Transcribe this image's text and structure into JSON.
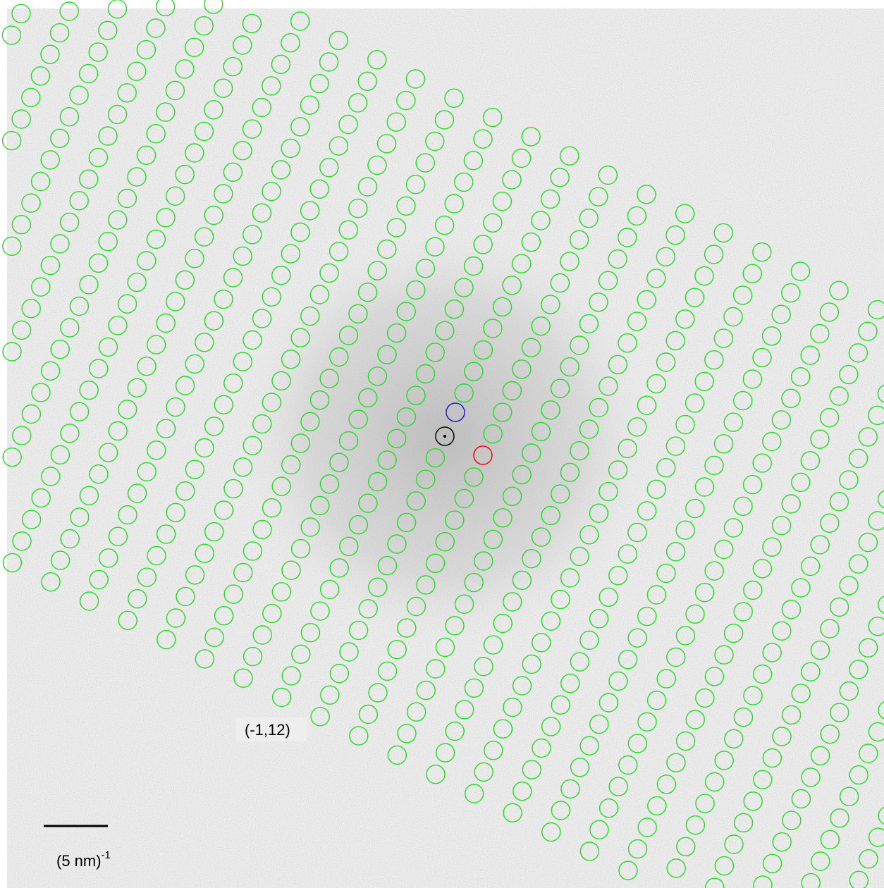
{
  "annotations": {
    "index_label": "(-1,12)"
  },
  "scale_bar": {
    "label": "(5 nm)",
    "exponent": "-1"
  }
}
